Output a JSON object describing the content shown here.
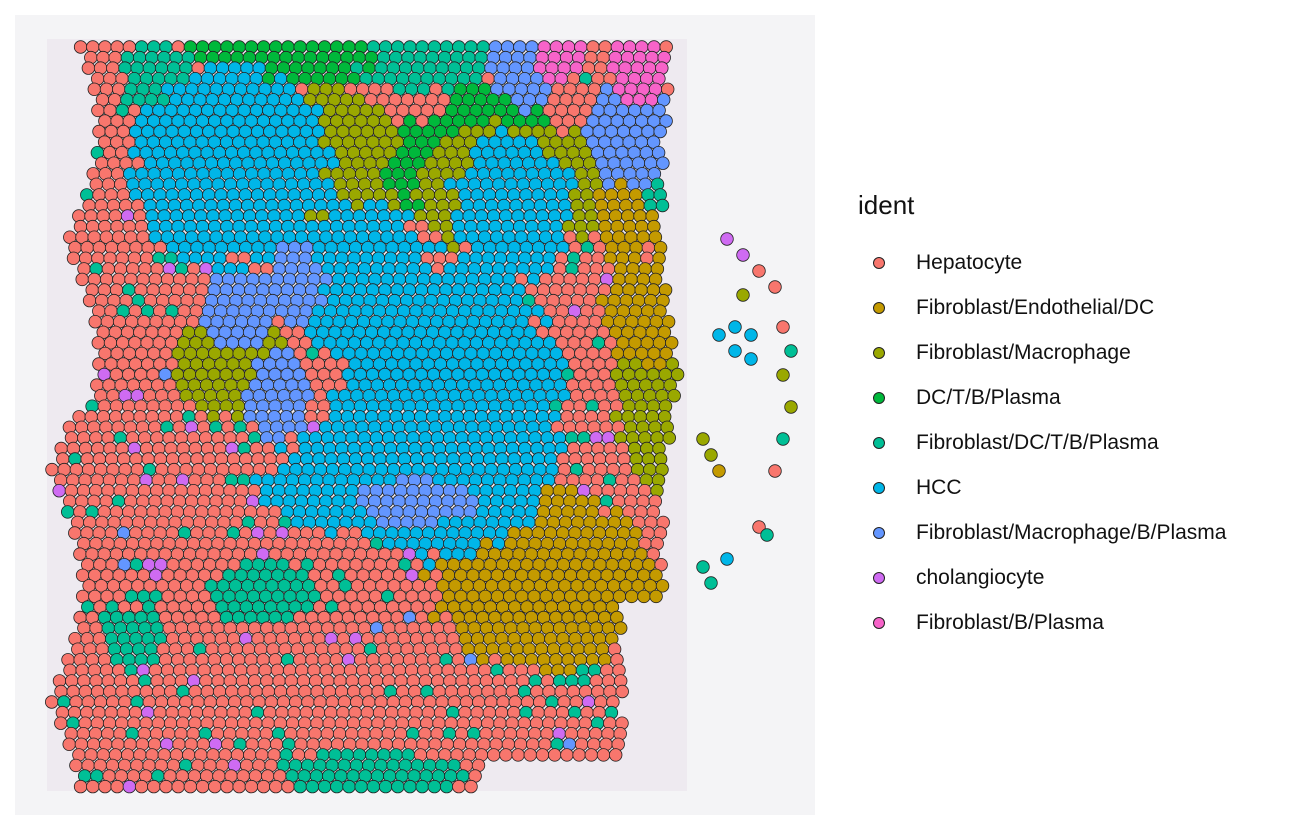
{
  "chart_data": {
    "type": "scatter",
    "title": "",
    "xlabel": "",
    "ylabel": "",
    "grid": false,
    "legend_position": "right",
    "legend_title": "ident",
    "categories": [
      {
        "name": "Hepatocyte",
        "color": "#F8766D"
      },
      {
        "name": "Fibroblast/Endothelial/DC",
        "color": "#C49A00"
      },
      {
        "name": "Fibroblast/Macrophage",
        "color": "#9AA800"
      },
      {
        "name": "DC/T/B/Plasma",
        "color": "#00B83B"
      },
      {
        "name": "Fibroblast/DC/T/B/Plasma",
        "color": "#00BF96"
      },
      {
        "name": "HCC",
        "color": "#00B6E8"
      },
      {
        "name": "Fibroblast/Macrophage/B/Plasma",
        "color": "#6396FF"
      },
      {
        "name": "cholangiocyte",
        "color": "#CF6BF2"
      },
      {
        "name": "Fibroblast/B/Plasma",
        "color": "#F763C9"
      }
    ],
    "regions": {
      "HCC": [
        [
          0.27,
          0.19,
          0.13,
          0.13
        ],
        [
          0.54,
          0.49,
          0.15,
          0.2
        ],
        [
          0.43,
          0.33,
          0.1,
          0.1
        ],
        [
          0.62,
          0.24,
          0.08,
          0.1
        ],
        [
          0.48,
          0.58,
          0.18,
          0.08
        ]
      ],
      "Fibroblast/Endothelial/DC": [
        [
          0.66,
          0.71,
          0.15,
          0.12
        ],
        [
          0.79,
          0.37,
          0.06,
          0.07
        ],
        [
          0.76,
          0.25,
          0.04,
          0.06
        ],
        [
          0.82,
          0.32,
          0.03,
          0.06
        ]
      ],
      "Fibroblast/Macrophage": [
        [
          0.81,
          0.48,
          0.06,
          0.12
        ],
        [
          0.39,
          0.15,
          0.09,
          0.06
        ],
        [
          0.42,
          0.26,
          0.07,
          0.08
        ],
        [
          0.7,
          0.21,
          0.08,
          0.07
        ],
        [
          0.27,
          0.44,
          0.07,
          0.07
        ],
        [
          0.6,
          0.22,
          0.1,
          0.09
        ]
      ],
      "DC/T/B/Plasma": [
        [
          0.33,
          0.05,
          0.12,
          0.05
        ],
        [
          0.6,
          0.15,
          0.08,
          0.07
        ],
        [
          0.51,
          0.19,
          0.06,
          0.06
        ],
        [
          0.25,
          0.12,
          0.05,
          0.06
        ],
        [
          0.37,
          0.6,
          0.03,
          0.04
        ]
      ],
      "Fibroblast/DC/T/B/Plasma": [
        [
          0.51,
          0.05,
          0.1,
          0.05
        ],
        [
          0.31,
          0.72,
          0.07,
          0.04
        ],
        [
          0.44,
          0.95,
          0.12,
          0.03
        ],
        [
          0.18,
          0.08,
          0.05,
          0.05
        ],
        [
          0.82,
          0.23,
          0.04,
          0.06
        ],
        [
          0.15,
          0.78,
          0.04,
          0.04
        ],
        [
          0.7,
          0.8,
          0.04,
          0.05
        ]
      ],
      "Fibroblast/Macrophage/B/Plasma": [
        [
          0.64,
          0.07,
          0.05,
          0.05
        ],
        [
          0.77,
          0.15,
          0.06,
          0.07
        ],
        [
          0.35,
          0.34,
          0.04,
          0.06
        ],
        [
          0.5,
          0.61,
          0.08,
          0.03
        ],
        [
          0.33,
          0.48,
          0.04,
          0.06
        ],
        [
          0.28,
          0.37,
          0.05,
          0.05
        ]
      ],
      "Fibroblast/B/Plasma": [
        [
          0.68,
          0.05,
          0.04,
          0.04
        ],
        [
          0.78,
          0.07,
          0.04,
          0.05
        ]
      ]
    },
    "tissue_bounds": {
      "x": [
        0.045,
        0.83
      ],
      "y": [
        0.04,
        0.965
      ]
    },
    "satellite_spots": [
      {
        "x": 0.88,
        "y": 0.4,
        "ident": "HCC"
      },
      {
        "x": 0.9,
        "y": 0.39,
        "ident": "HCC"
      },
      {
        "x": 0.9,
        "y": 0.42,
        "ident": "HCC"
      },
      {
        "x": 0.92,
        "y": 0.4,
        "ident": "HCC"
      },
      {
        "x": 0.92,
        "y": 0.43,
        "ident": "HCC"
      },
      {
        "x": 0.91,
        "y": 0.35,
        "ident": "Fibroblast/Macrophage"
      },
      {
        "x": 0.95,
        "y": 0.34,
        "ident": "Hepatocyte"
      },
      {
        "x": 0.96,
        "y": 0.39,
        "ident": "Hepatocyte"
      },
      {
        "x": 0.97,
        "y": 0.42,
        "ident": "Fibroblast/DC/T/B/Plasma"
      },
      {
        "x": 0.96,
        "y": 0.45,
        "ident": "Fibroblast/Macrophage"
      },
      {
        "x": 0.97,
        "y": 0.49,
        "ident": "Fibroblast/Macrophage"
      },
      {
        "x": 0.96,
        "y": 0.53,
        "ident": "Fibroblast/DC/T/B/Plasma"
      },
      {
        "x": 0.95,
        "y": 0.57,
        "ident": "Hepatocyte"
      },
      {
        "x": 0.93,
        "y": 0.64,
        "ident": "Hepatocyte"
      },
      {
        "x": 0.94,
        "y": 0.65,
        "ident": "Fibroblast/DC/T/B/Plasma"
      },
      {
        "x": 0.89,
        "y": 0.68,
        "ident": "HCC"
      },
      {
        "x": 0.86,
        "y": 0.69,
        "ident": "Fibroblast/DC/T/B/Plasma"
      },
      {
        "x": 0.87,
        "y": 0.71,
        "ident": "Fibroblast/DC/T/B/Plasma"
      },
      {
        "x": 0.89,
        "y": 0.28,
        "ident": "cholangiocyte"
      },
      {
        "x": 0.91,
        "y": 0.3,
        "ident": "cholangiocyte"
      },
      {
        "x": 0.93,
        "y": 0.32,
        "ident": "Hepatocyte"
      },
      {
        "x": 0.86,
        "y": 0.53,
        "ident": "Fibroblast/Macrophage"
      },
      {
        "x": 0.87,
        "y": 0.55,
        "ident": "Fibroblast/Macrophage"
      },
      {
        "x": 0.88,
        "y": 0.57,
        "ident": "Fibroblast/Endothelial/DC"
      }
    ]
  }
}
